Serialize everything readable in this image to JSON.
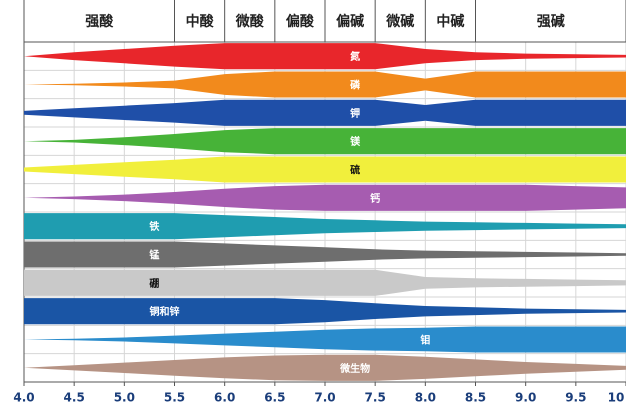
{
  "chart_data": {
    "type": "area",
    "title": "",
    "xlabel": "",
    "ylabel": "",
    "xlim": [
      4.0,
      10.0
    ],
    "x_ticks": [
      "4.0",
      "4.5",
      "5.0",
      "5.5",
      "6.0",
      "6.5",
      "7.0",
      "7.5",
      "8.0",
      "8.5",
      "9.0",
      "9.5",
      "10"
    ],
    "ph_zones": [
      {
        "label": "强酸",
        "from": 4.0,
        "to": 5.5
      },
      {
        "label": "中酸",
        "from": 5.5,
        "to": 6.0
      },
      {
        "label": "微酸",
        "from": 6.0,
        "to": 6.5
      },
      {
        "label": "偏酸",
        "from": 6.5,
        "to": 7.0
      },
      {
        "label": "偏碱",
        "from": 7.0,
        "to": 7.5
      },
      {
        "label": "微碱",
        "from": 7.5,
        "to": 8.0
      },
      {
        "label": "中碱",
        "from": 8.0,
        "to": 8.5
      },
      {
        "label": "强碱",
        "from": 8.5,
        "to": 10.0
      }
    ],
    "x_sample": [
      4.0,
      4.5,
      5.0,
      5.5,
      6.0,
      6.5,
      7.0,
      7.5,
      8.0,
      8.5,
      9.0,
      9.5,
      10.0
    ],
    "series": [
      {
        "name": "氮",
        "color": "#e8262b",
        "widths": [
          0.0,
          0.3,
          0.55,
          0.8,
          1.0,
          1.0,
          1.0,
          1.0,
          0.55,
          0.3,
          0.2,
          0.15,
          0.1
        ]
      },
      {
        "name": "磷",
        "color": "#f28a1c",
        "widths": [
          0.0,
          0.05,
          0.15,
          0.3,
          0.8,
          1.0,
          1.0,
          1.0,
          0.45,
          1.0,
          1.0,
          1.0,
          1.0
        ]
      },
      {
        "name": "钾",
        "color": "#1f4fa8",
        "widths": [
          0.15,
          0.35,
          0.55,
          0.75,
          1.0,
          1.0,
          1.0,
          1.0,
          0.6,
          1.0,
          1.0,
          1.0,
          1.0
        ]
      },
      {
        "name": "镁",
        "color": "#47b338",
        "widths": [
          0.0,
          0.1,
          0.3,
          0.55,
          0.85,
          1.0,
          1.0,
          1.0,
          1.0,
          1.0,
          1.0,
          1.0,
          1.0
        ]
      },
      {
        "name": "硫",
        "color": "#f1ef3c",
        "widths": [
          0.15,
          0.35,
          0.55,
          0.75,
          1.0,
          1.0,
          1.0,
          1.0,
          1.0,
          1.0,
          1.0,
          1.0,
          1.0
        ]
      },
      {
        "name": "钙",
        "color": "#a65cb0",
        "widths": [
          0.0,
          0.1,
          0.25,
          0.45,
          0.7,
          0.9,
          1.0,
          1.0,
          1.0,
          1.0,
          1.0,
          0.9,
          0.8
        ]
      },
      {
        "name": "铁",
        "color": "#1f9db0",
        "widths": [
          1.0,
          1.0,
          1.0,
          1.0,
          0.85,
          0.7,
          0.55,
          0.45,
          0.35,
          0.3,
          0.25,
          0.2,
          0.15
        ]
      },
      {
        "name": "锰",
        "color": "#6e6e6e",
        "widths": [
          1.0,
          1.0,
          1.0,
          1.0,
          0.85,
          0.7,
          0.55,
          0.4,
          0.3,
          0.25,
          0.2,
          0.15,
          0.1
        ]
      },
      {
        "name": "硼",
        "color": "#c9c9c9",
        "widths": [
          1.0,
          1.0,
          1.0,
          1.0,
          1.0,
          1.0,
          1.0,
          1.0,
          0.45,
          0.35,
          0.3,
          0.25,
          0.2
        ]
      },
      {
        "name": "铜和锌",
        "color": "#1a55a5",
        "widths": [
          1.0,
          1.0,
          1.0,
          1.0,
          1.0,
          1.0,
          0.85,
          0.6,
          0.4,
          0.3,
          0.2,
          0.15,
          0.1
        ]
      },
      {
        "name": "钼",
        "color": "#2a8ccc",
        "widths": [
          0.0,
          0.05,
          0.15,
          0.3,
          0.45,
          0.6,
          0.75,
          0.85,
          0.9,
          1.0,
          1.0,
          1.0,
          1.0
        ]
      },
      {
        "name": "微生物",
        "color": "#b69384",
        "widths": [
          0.0,
          0.2,
          0.4,
          0.6,
          0.8,
          0.95,
          1.0,
          1.0,
          0.85,
          0.65,
          0.45,
          0.3,
          0.15
        ]
      }
    ],
    "legend": "none",
    "grid": true
  }
}
